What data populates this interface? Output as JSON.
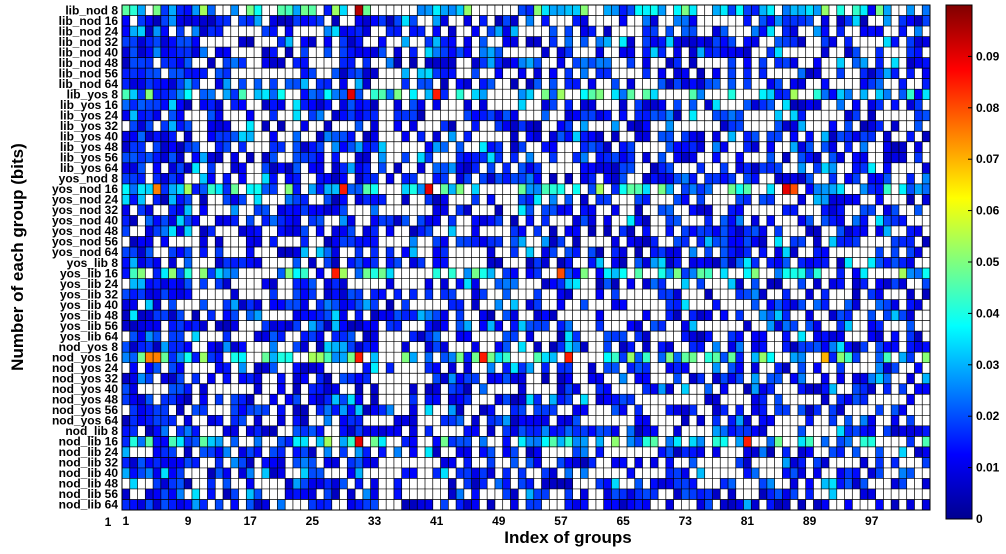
{
  "chart_data": {
    "type": "heatmap",
    "title": "",
    "xlabel": "Index of groups",
    "ylabel": "Number of each group (bits)",
    "x_ticks": [
      "1",
      "9",
      "17",
      "25",
      "33",
      "41",
      "49",
      "57",
      "65",
      "73",
      "81",
      "89",
      "97"
    ],
    "y_corner_label": "1",
    "y_labels": [
      "lib_nod 8",
      "lib_nod 16",
      "lib_nod 24",
      "lib_nod 32",
      "lib_nod 40",
      "lib_nod 48",
      "lib_nod 56",
      "lib_nod 64",
      "lib_yos 8",
      "lib_yos 16",
      "lib_yos 24",
      "lib_yos 32",
      "lib_yos 40",
      "lib_yos 48",
      "lib_yos 56",
      "lib_yos 64",
      "yos_nod 8",
      "yos_nod 16",
      "yos_nod 24",
      "yos_nod 32",
      "yos_nod 40",
      "yos_nod 48",
      "yos_nod 56",
      "yos_nod 64",
      "yos_lib 8",
      "yos_lib 16",
      "yos_lib 24",
      "yos_lib 32",
      "yos_lib 40",
      "yos_lib 48",
      "yos_lib 56",
      "yos_lib 64",
      "nod_yos 8",
      "nod_yos 16",
      "nod_yos 24",
      "nod_yos 32",
      "nod_yos 40",
      "nod_yos 48",
      "nod_yos 56",
      "nod_yos 64",
      "nod_lib 8",
      "nod_lib 16",
      "nod_lib 24",
      "nod_lib 32",
      "nod_lib 40",
      "nod_lib 48",
      "nod_lib 56",
      "nod_lib 64"
    ],
    "n_groups": 104,
    "colorbar": {
      "colormap": "jet",
      "range": [
        0,
        0.1
      ],
      "ticks": [
        "0",
        "0.01",
        "0.02",
        "0.03",
        "0.04",
        "0.05",
        "0.06",
        "0.07",
        "0.08",
        "0.09"
      ],
      "zero_color": "#ffffff"
    },
    "grid": true,
    "highlight_rows": [
      "lib_nod 8",
      "lib_yos 8",
      "yos_nod 16",
      "yos_lib 16",
      "nod_yos 16",
      "nod_lib 16"
    ],
    "hot_cells": [
      {
        "row": "lib_nod 8",
        "group": 31,
        "value": 0.095
      },
      {
        "row": "lib_yos 8",
        "group": 30,
        "value": 0.09
      },
      {
        "row": "lib_yos 8",
        "group": 41,
        "value": 0.085
      },
      {
        "row": "yos_nod 16",
        "group": 5,
        "value": 0.075
      },
      {
        "row": "yos_nod 16",
        "group": 29,
        "value": 0.085
      },
      {
        "row": "yos_nod 16",
        "group": 40,
        "value": 0.09
      },
      {
        "row": "yos_nod 16",
        "group": 86,
        "value": 0.09
      },
      {
        "row": "yos_nod 16",
        "group": 87,
        "value": 0.08
      },
      {
        "row": "yos_lib 16",
        "group": 28,
        "value": 0.085
      },
      {
        "row": "yos_lib 16",
        "group": 57,
        "value": 0.08
      },
      {
        "row": "nod_yos 16",
        "group": 4,
        "value": 0.075
      },
      {
        "row": "nod_yos 16",
        "group": 5,
        "value": 0.075
      },
      {
        "row": "nod_yos 16",
        "group": 31,
        "value": 0.085
      },
      {
        "row": "nod_yos 16",
        "group": 47,
        "value": 0.085
      },
      {
        "row": "nod_yos 16",
        "group": 58,
        "value": 0.085
      },
      {
        "row": "nod_yos 16",
        "group": 91,
        "value": 0.07
      },
      {
        "row": "nod_lib 16",
        "group": 31,
        "value": 0.09
      },
      {
        "row": "nod_lib 16",
        "group": 81,
        "value": 0.085
      }
    ]
  }
}
